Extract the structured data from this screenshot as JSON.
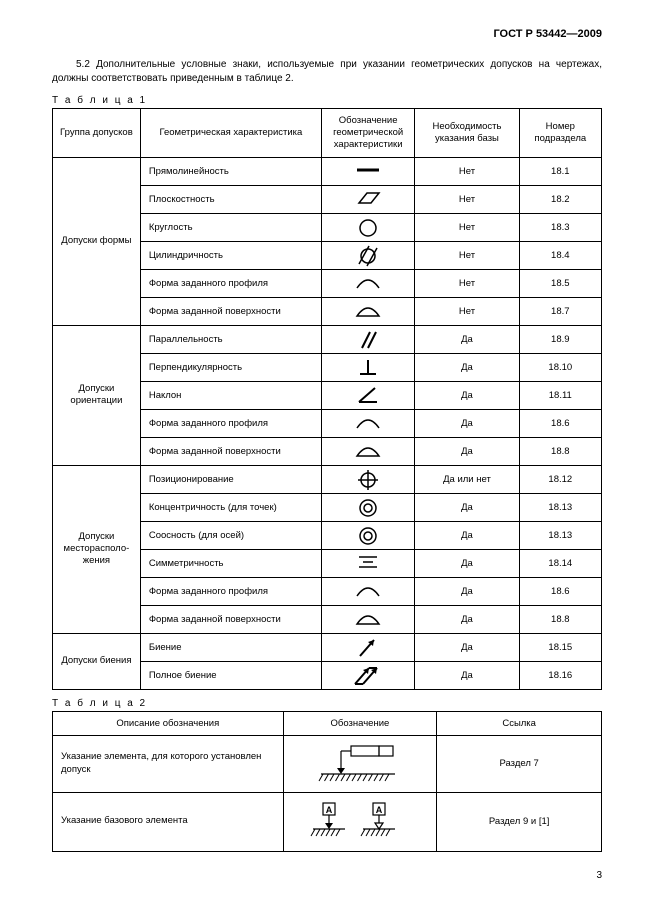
{
  "header": "ГОСТ Р 53442—2009",
  "paragraph": "5.2 Дополнительные условные знаки, используемые при указании геометрических допусков на чертежах, должны соответствовать приведенным в таблице 2.",
  "table1_label": "Т а б л и ц а  1",
  "table1": {
    "columns": [
      "Группа допусков",
      "Геометрическая характеристика",
      "Обозначение геометрической характеристики",
      "Необходимость указания базы",
      "Номер подраздела"
    ],
    "groups": [
      {
        "name": "Допуски формы",
        "rows": [
          {
            "char": "Прямолинейность",
            "sym": "straightness",
            "base": "Нет",
            "sub": "18.1"
          },
          {
            "char": "Плоскостность",
            "sym": "flatness",
            "base": "Нет",
            "sub": "18.2"
          },
          {
            "char": "Круглость",
            "sym": "roundness",
            "base": "Нет",
            "sub": "18.3"
          },
          {
            "char": "Цилиндричность",
            "sym": "cylindricity",
            "base": "Нет",
            "sub": "18.4"
          },
          {
            "char": "Форма заданного профиля",
            "sym": "profile-line",
            "base": "Нет",
            "sub": "18.5"
          },
          {
            "char": "Форма заданной поверхности",
            "sym": "profile-surface",
            "base": "Нет",
            "sub": "18.7"
          }
        ]
      },
      {
        "name": "Допуски ориентации",
        "rows": [
          {
            "char": "Параллельность",
            "sym": "parallelism",
            "base": "Да",
            "sub": "18.9"
          },
          {
            "char": "Перпендикулярность",
            "sym": "perpendicularity",
            "base": "Да",
            "sub": "18.10"
          },
          {
            "char": "Наклон",
            "sym": "angularity",
            "base": "Да",
            "sub": "18.11"
          },
          {
            "char": "Форма заданного профиля",
            "sym": "profile-line",
            "base": "Да",
            "sub": "18.6"
          },
          {
            "char": "Форма заданной поверхности",
            "sym": "profile-surface",
            "base": "Да",
            "sub": "18.8"
          }
        ]
      },
      {
        "name": "Допуски месторасположения",
        "rows": [
          {
            "char": "Позиционирование",
            "sym": "position",
            "base": "Да или нет",
            "sub": "18.12"
          },
          {
            "char": "Концентричность (для точек)",
            "sym": "concentricity",
            "base": "Да",
            "sub": "18.13"
          },
          {
            "char": "Соосность (для осей)",
            "sym": "concentricity",
            "base": "Да",
            "sub": "18.13"
          },
          {
            "char": "Симметричность",
            "sym": "symmetry",
            "base": "Да",
            "sub": "18.14"
          },
          {
            "char": "Форма заданного профиля",
            "sym": "profile-line",
            "base": "Да",
            "sub": "18.6"
          },
          {
            "char": "Форма заданной поверхности",
            "sym": "profile-surface",
            "base": "Да",
            "sub": "18.8"
          }
        ]
      },
      {
        "name": "Допуски биения",
        "rows": [
          {
            "char": "Биение",
            "sym": "runout",
            "base": "Да",
            "sub": "18.15"
          },
          {
            "char": "Полное биение",
            "sym": "total-runout",
            "base": "Да",
            "sub": "18.16"
          }
        ]
      }
    ],
    "col_widths": [
      "16%",
      "33%",
      "17%",
      "19%",
      "15%"
    ]
  },
  "table2_label": "Т а б л и ц а  2",
  "table2": {
    "columns": [
      "Описание обозначения",
      "Обозначение",
      "Ссылка"
    ],
    "rows": [
      {
        "desc": "Указание элемента, для которого установлен допуск",
        "sym": "feature-frame",
        "ref": "Раздел 7"
      },
      {
        "desc": "Указание базового элемента",
        "sym": "datum",
        "ref": "Раздел 9 и [1]"
      }
    ],
    "col_widths": [
      "42%",
      "28%",
      "30%"
    ]
  },
  "page_number": "3",
  "style": {
    "stroke": "#000000",
    "stroke_width": 1.5
  }
}
